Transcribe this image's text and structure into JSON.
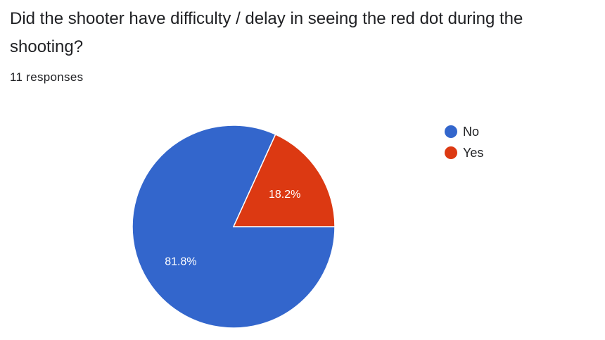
{
  "question": {
    "title": "Did the shooter have difficulty / delay in seeing the red dot during the shooting?",
    "response_count": "11 responses"
  },
  "colors": {
    "no": "#3366cc",
    "yes": "#dc3912"
  },
  "chart_data": {
    "type": "pie",
    "title": "Did the shooter have difficulty / delay in seeing the red dot during the shooting?",
    "legend_position": "right",
    "slices": [
      {
        "label": "No",
        "value": 81.8,
        "display": "81.8%",
        "color": "#3366cc"
      },
      {
        "label": "Yes",
        "value": 18.2,
        "display": "18.2%",
        "color": "#dc3912"
      }
    ]
  }
}
